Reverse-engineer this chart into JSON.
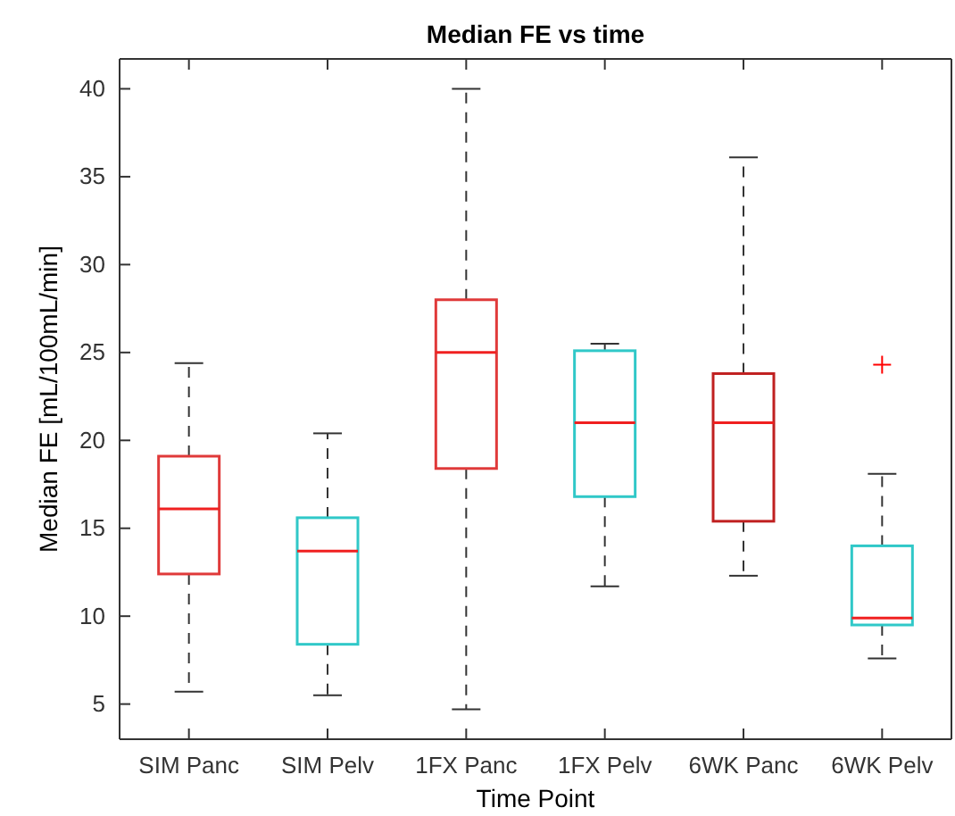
{
  "chart_data": {
    "type": "box",
    "title": "Median FE vs time",
    "xlabel": "Time Point",
    "ylabel": "Median FE [mL/100mL/min]",
    "categories": [
      "SIM Panc",
      "SIM Pelv",
      "1FX Panc",
      "1FX Pelv",
      "6WK Panc",
      "6WK Pelv"
    ],
    "ylim": [
      3,
      41.7
    ],
    "yticks": [
      5,
      10,
      15,
      20,
      25,
      30,
      35,
      40
    ],
    "colors": [
      "#e03a3a",
      "#30c8c8",
      "#e03a3a",
      "#30c8c8",
      "#c02020",
      "#30c8c8"
    ],
    "boxes": [
      {
        "low": 5.7,
        "q1": 12.4,
        "median": 16.1,
        "q3": 19.1,
        "high": 24.4
      },
      {
        "low": 5.5,
        "q1": 8.4,
        "median": 13.7,
        "q3": 15.6,
        "high": 20.4
      },
      {
        "low": 4.7,
        "q1": 18.4,
        "median": 25.0,
        "q3": 28.0,
        "high": 40.0
      },
      {
        "low": 11.7,
        "q1": 16.8,
        "median": 21.0,
        "q3": 25.1,
        "high": 25.5
      },
      {
        "low": 12.3,
        "q1": 15.4,
        "median": 21.0,
        "q3": 23.8,
        "high": 36.1
      },
      {
        "low": 7.6,
        "q1": 9.5,
        "median": 9.9,
        "q3": 14.0,
        "high": 18.1,
        "outliers": [
          24.3
        ]
      }
    ],
    "line_style": "dashed",
    "marker": "cross"
  }
}
